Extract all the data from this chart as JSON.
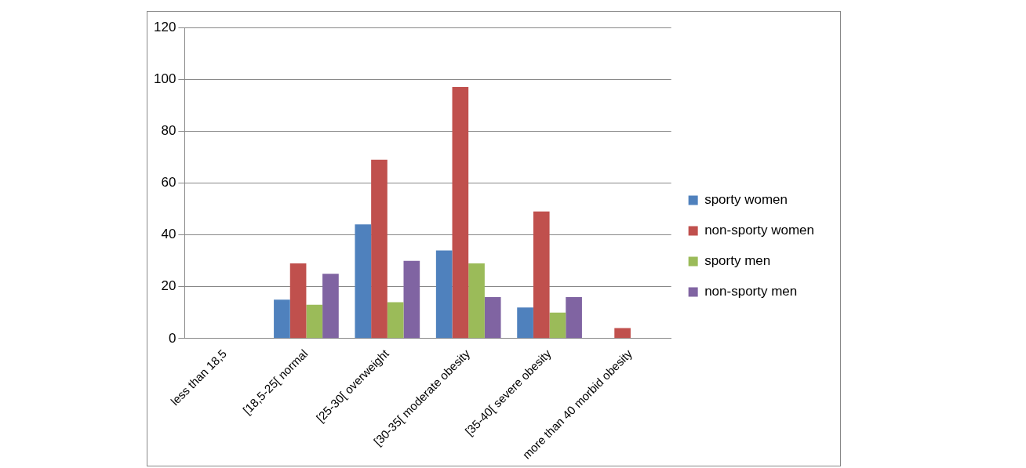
{
  "chart_data": {
    "type": "bar",
    "categories": [
      "less than 18,5",
      "[18,5-25[ normal",
      "[25-30[ overweight",
      "[30-35[ moderate obesity",
      "[35-40[ severe obesity",
      "more than 40 morbid obesity"
    ],
    "series": [
      {
        "name": "sporty women",
        "color": "#4f81bd",
        "values": [
          0,
          15,
          44,
          34,
          12,
          0
        ]
      },
      {
        "name": "non-sporty women",
        "color": "#c0504d",
        "values": [
          0,
          29,
          69,
          97,
          49,
          4
        ]
      },
      {
        "name": "sporty men",
        "color": "#9bbb59",
        "values": [
          0,
          13,
          14,
          29,
          10,
          0
        ]
      },
      {
        "name": "non-sporty men",
        "color": "#8064a2",
        "values": [
          0,
          25,
          30,
          16,
          16,
          0
        ]
      }
    ],
    "ylim": [
      0,
      120
    ],
    "yticks": [
      0,
      20,
      40,
      60,
      80,
      100,
      120
    ],
    "grid": "y",
    "legend": "right"
  }
}
